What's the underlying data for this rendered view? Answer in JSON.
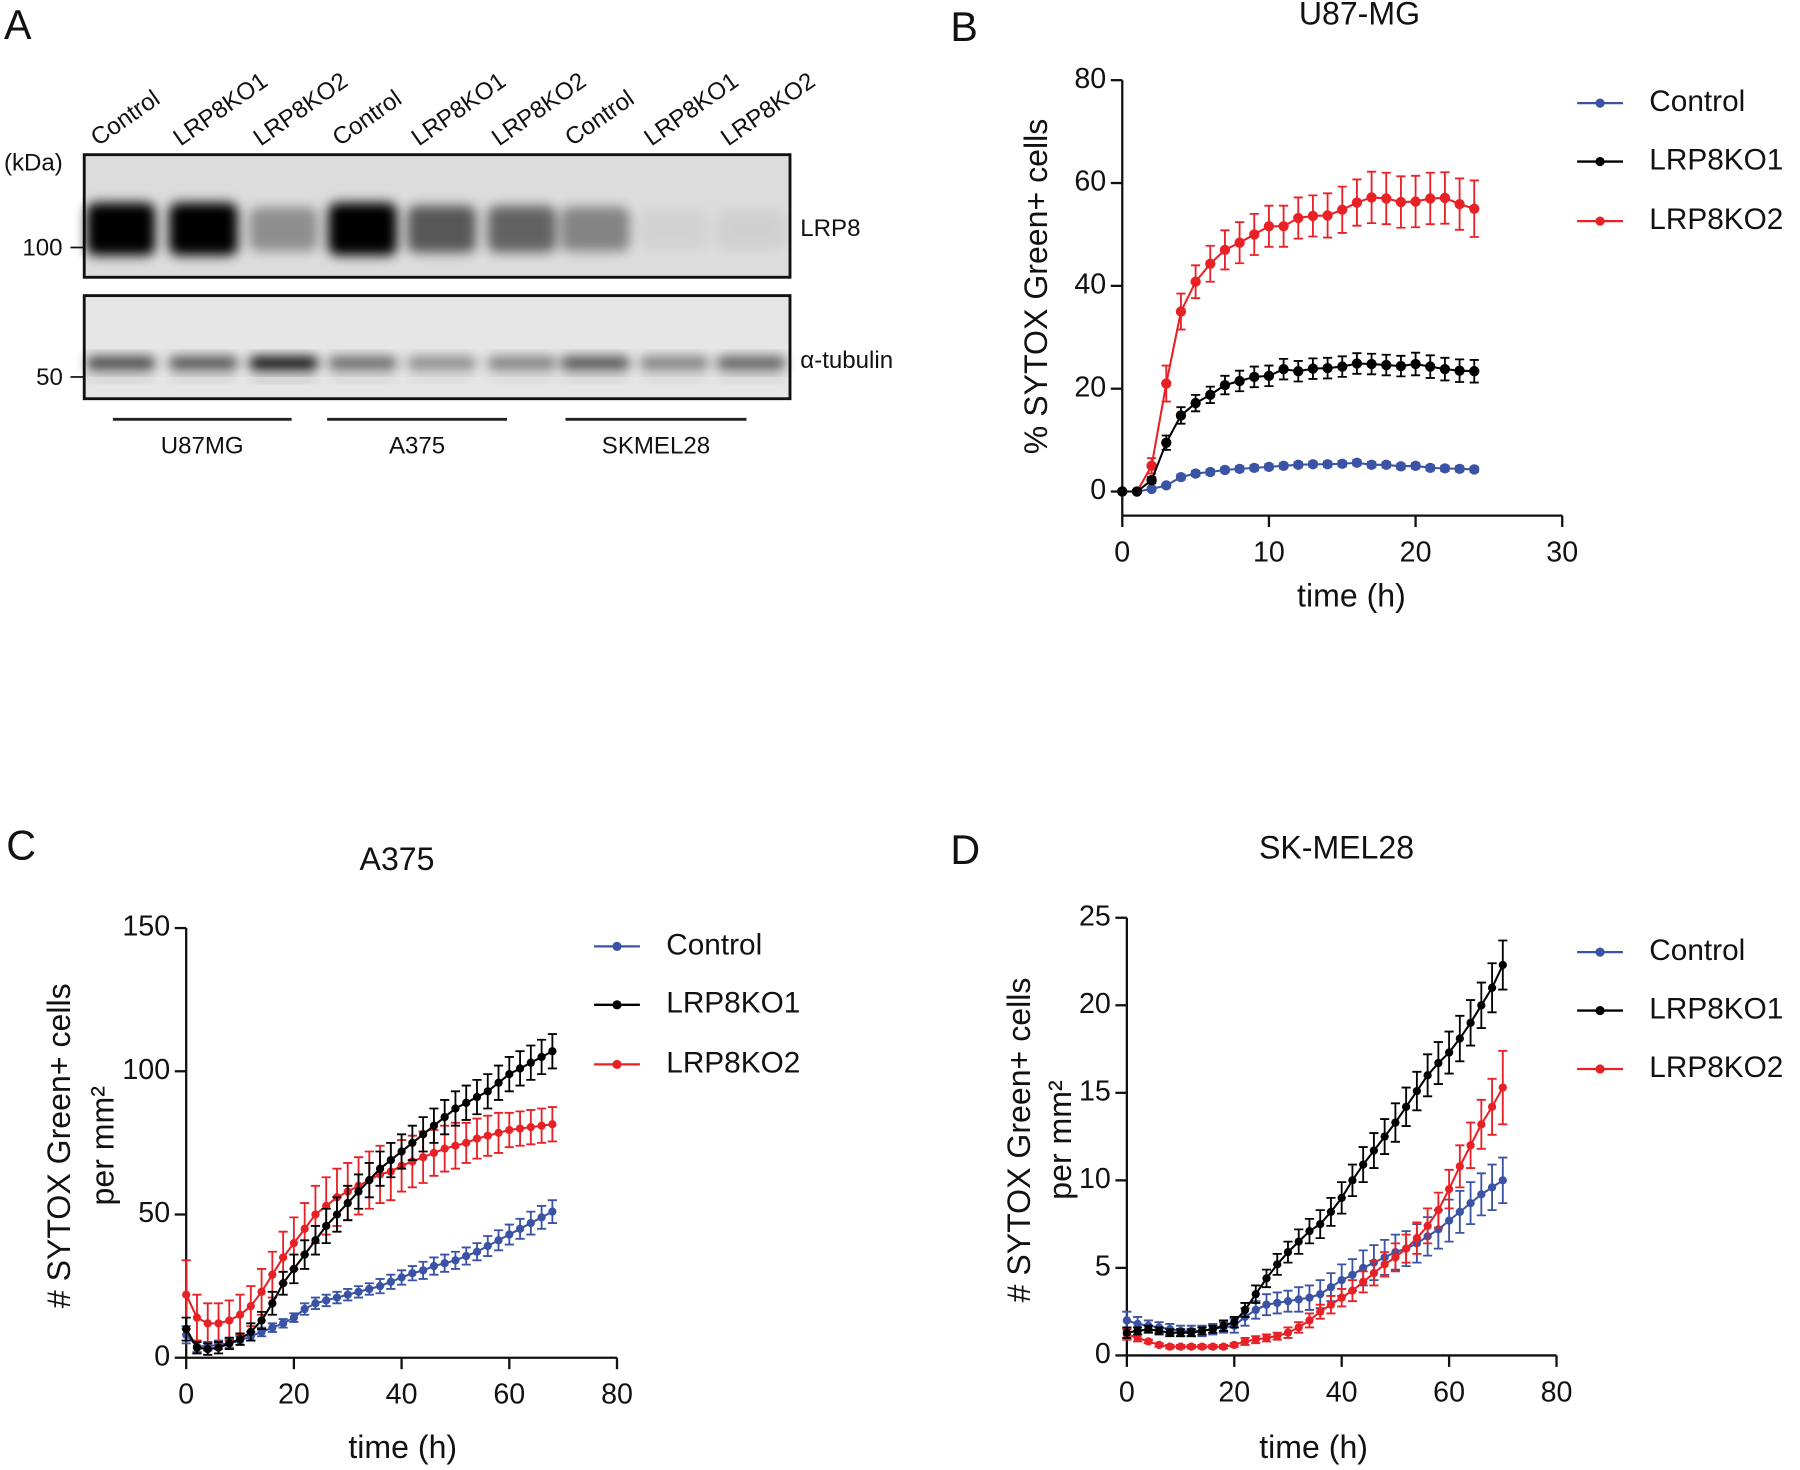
{
  "panels": {
    "a": "A",
    "b": "B",
    "c": "C",
    "d": "D"
  },
  "western_blot": {
    "lanes": [
      "Control",
      "LRP8KO1",
      "LRP8KO2",
      "Control",
      "LRP8KO1",
      "LRP8KO2",
      "Control",
      "LRP8KO1",
      "LRP8KO2"
    ],
    "kda_label": "(kDa)",
    "marker_100": "100",
    "marker_50": "50",
    "blot_lrp8": "LRP8",
    "blot_tubulin": "α-tubulin",
    "groups": [
      "U87MG",
      "A375",
      "SKMEL28"
    ],
    "lrp8_intensity": [
      1.0,
      1.0,
      0.35,
      1.0,
      0.6,
      0.55,
      0.4,
      0.04,
      0.05
    ],
    "tubulin_intensity": [
      0.7,
      0.65,
      0.95,
      0.55,
      0.4,
      0.45,
      0.65,
      0.45,
      0.6
    ]
  },
  "colors": {
    "Control": "#3a53a4",
    "LRP8KO1": "#000000",
    "LRP8KO2": "#e82127"
  },
  "chart_data": [
    {
      "type": "line",
      "title": "U87-MG",
      "xlabel": "time (h)",
      "ylabel": [
        "% SYTOX Green+ cells"
      ],
      "xlim": [
        0,
        30
      ],
      "ylim": [
        0,
        80
      ],
      "xticks": [
        0,
        10,
        20,
        30
      ],
      "yticks": [
        0,
        20,
        40,
        60,
        80
      ],
      "legend": "right",
      "x": [
        0,
        1,
        2,
        3,
        4,
        5,
        6,
        7,
        8,
        9,
        10,
        11,
        12,
        13,
        14,
        15,
        16,
        17,
        18,
        19,
        20,
        21,
        22,
        23,
        24
      ],
      "series": [
        {
          "name": "Control",
          "values": [
            0,
            0,
            0.5,
            1.2,
            2.8,
            3.5,
            3.8,
            4.2,
            4.4,
            4.6,
            4.8,
            5,
            5.2,
            5.3,
            5.3,
            5.4,
            5.6,
            5.2,
            5.2,
            4.9,
            5,
            4.6,
            4.5,
            4.4,
            4.3
          ],
          "error": [
            0,
            0,
            0.3,
            0.4,
            0.5,
            0.5,
            0.5,
            0.5,
            0.5,
            0.5,
            0.5,
            0.5,
            0.5,
            0.5,
            0.5,
            0.5,
            0.5,
            0.5,
            0.5,
            0.5,
            0.5,
            0.5,
            0.5,
            0.5,
            0.5
          ]
        },
        {
          "name": "LRP8KO1",
          "values": [
            0,
            0,
            2.2,
            9.5,
            14.8,
            17.2,
            18.8,
            20.7,
            21.5,
            22.3,
            22.5,
            23.8,
            23.4,
            23.9,
            24,
            24.3,
            24.9,
            24.8,
            24.6,
            24.4,
            24.8,
            24.3,
            23.8,
            23.5,
            23.4
          ],
          "error": [
            0,
            0,
            0.6,
            1.4,
            1.6,
            1.6,
            1.6,
            1.8,
            2,
            2,
            2,
            2,
            2,
            2,
            2,
            2,
            2,
            2,
            2,
            2,
            2.2,
            2.2,
            2.2,
            2.2,
            2.2
          ]
        },
        {
          "name": "LRP8KO2",
          "values": [
            0,
            0,
            5,
            21,
            35,
            40.8,
            44.3,
            47,
            48.4,
            50,
            51.6,
            51.6,
            53.2,
            53.6,
            53.7,
            54.8,
            56.2,
            57.2,
            57,
            56.3,
            56.4,
            57,
            57.1,
            55.9,
            55
          ],
          "error": [
            0,
            0,
            1.5,
            3.5,
            3.5,
            3.2,
            3.5,
            3.8,
            4,
            4,
            4,
            4,
            4,
            4,
            4.3,
            4.5,
            4.5,
            5,
            5,
            5,
            5,
            5,
            5,
            5,
            5.5
          ]
        }
      ]
    },
    {
      "type": "line",
      "title": "A375",
      "xlabel": "time (h)",
      "ylabel": [
        "# SYTOX Green+ cells",
        "per mm²"
      ],
      "xlim": [
        0,
        80
      ],
      "ylim": [
        0,
        150
      ],
      "xticks": [
        0,
        20,
        40,
        60,
        80
      ],
      "yticks": [
        0,
        50,
        100,
        150
      ],
      "legend": "right",
      "x": [
        0,
        2,
        4,
        6,
        8,
        10,
        12,
        14,
        16,
        18,
        20,
        22,
        24,
        26,
        28,
        30,
        32,
        34,
        36,
        38,
        40,
        42,
        44,
        46,
        48,
        50,
        52,
        54,
        56,
        58,
        60,
        62,
        64,
        66,
        68
      ],
      "series": [
        {
          "name": "Control",
          "values": [
            8,
            4,
            4,
            4.5,
            5,
            6,
            7.5,
            9,
            10.5,
            12,
            14,
            17,
            19,
            20,
            21,
            22,
            23,
            24,
            25,
            26.5,
            28,
            29.5,
            30.5,
            32,
            33,
            34,
            35.5,
            37,
            39,
            41,
            43,
            45,
            47,
            49,
            51
          ],
          "error": [
            3,
            2,
            1.5,
            1.5,
            1.5,
            1.5,
            1.5,
            1.5,
            1.5,
            1.5,
            1.5,
            2,
            2,
            2,
            2,
            2,
            2,
            2,
            2.5,
            2.5,
            2.5,
            2.5,
            3,
            3,
            3,
            3,
            3,
            3,
            3.5,
            3.5,
            3.5,
            3.5,
            4,
            4,
            4
          ]
        },
        {
          "name": "LRP8KO1",
          "values": [
            10,
            3.5,
            3,
            3.5,
            5,
            6.5,
            9,
            13,
            19,
            26,
            31,
            36,
            41,
            46,
            50,
            54,
            58,
            62,
            66,
            69,
            72,
            75,
            78,
            81,
            84,
            87,
            89,
            91,
            93,
            96,
            99,
            101,
            103,
            105,
            107
          ],
          "error": [
            4,
            2,
            2,
            2,
            2,
            2,
            3,
            3,
            4,
            4,
            5,
            5,
            5,
            6,
            6,
            6,
            6,
            6,
            6,
            6,
            6,
            6,
            6,
            6,
            6,
            6,
            6,
            6,
            6,
            6,
            6,
            6,
            6,
            6,
            6
          ]
        },
        {
          "name": "LRP8KO2",
          "values": [
            22,
            14,
            12,
            12,
            13,
            15,
            18,
            23,
            29,
            35,
            40,
            45,
            50,
            53,
            56,
            58,
            60,
            62,
            64,
            65,
            67,
            68.5,
            70,
            71.5,
            73,
            74,
            75,
            76.5,
            77.5,
            78.5,
            79.5,
            80,
            80.5,
            81,
            81.5
          ],
          "error": [
            12,
            8,
            7,
            7,
            7,
            7,
            7,
            8,
            8,
            9,
            9,
            9,
            10,
            10,
            10,
            10,
            10,
            10,
            10,
            10,
            9,
            9,
            9,
            8,
            8,
            8,
            7,
            7,
            7,
            7,
            6,
            6,
            6,
            6,
            6
          ]
        }
      ]
    },
    {
      "type": "line",
      "title": "SK-MEL28",
      "xlabel": "time (h)",
      "ylabel": [
        "# SYTOX Green+ cells",
        "per mm²"
      ],
      "xlim": [
        0,
        80
      ],
      "ylim": [
        0,
        25
      ],
      "xticks": [
        0,
        20,
        40,
        60,
        80
      ],
      "yticks": [
        0,
        5,
        10,
        15,
        20,
        25
      ],
      "legend": "right",
      "x": [
        0,
        2,
        4,
        6,
        8,
        10,
        12,
        14,
        16,
        18,
        20,
        22,
        24,
        26,
        28,
        30,
        32,
        34,
        36,
        38,
        40,
        42,
        44,
        46,
        48,
        50,
        52,
        54,
        56,
        58,
        60,
        62,
        64,
        66,
        68,
        70
      ],
      "series": [
        {
          "name": "Control",
          "values": [
            2,
            1.8,
            1.7,
            1.6,
            1.5,
            1.4,
            1.4,
            1.4,
            1.5,
            1.6,
            1.7,
            2.2,
            2.6,
            2.9,
            3,
            3.1,
            3.2,
            3.3,
            3.5,
            3.9,
            4.3,
            4.6,
            5,
            5.3,
            5.6,
            5.9,
            6.1,
            6.4,
            6.8,
            7.2,
            7.7,
            8.2,
            8.7,
            9.2,
            9.6,
            10
          ],
          "error": [
            0.5,
            0.4,
            0.3,
            0.3,
            0.3,
            0.3,
            0.3,
            0.3,
            0.3,
            0.3,
            0.4,
            0.5,
            0.5,
            0.6,
            0.6,
            0.6,
            0.7,
            0.7,
            0.8,
            0.8,
            0.9,
            0.9,
            1,
            1,
            1,
            1,
            1,
            1.1,
            1.1,
            1.1,
            1.2,
            1.2,
            1.2,
            1.2,
            1.3,
            1.3
          ]
        },
        {
          "name": "LRP8KO1",
          "values": [
            1.3,
            1.4,
            1.5,
            1.4,
            1.3,
            1.3,
            1.3,
            1.4,
            1.5,
            1.7,
            1.9,
            2.6,
            3.5,
            4.4,
            5.2,
            5.9,
            6.5,
            7.1,
            7.5,
            8.2,
            9,
            10,
            10.9,
            11.7,
            12.5,
            13.3,
            14.2,
            15.1,
            16,
            16.7,
            17.3,
            18.1,
            19,
            20,
            21,
            22.3
          ],
          "error": [
            0.3,
            0.2,
            0.2,
            0.2,
            0.2,
            0.2,
            0.2,
            0.2,
            0.2,
            0.3,
            0.3,
            0.4,
            0.5,
            0.5,
            0.6,
            0.6,
            0.7,
            0.7,
            0.8,
            0.8,
            0.9,
            0.9,
            1,
            1,
            1,
            1.1,
            1.1,
            1.1,
            1.2,
            1.2,
            1.2,
            1.3,
            1.3,
            1.3,
            1.4,
            1.4
          ]
        },
        {
          "name": "LRP8KO2",
          "values": [
            1.2,
            1,
            0.8,
            0.6,
            0.5,
            0.5,
            0.5,
            0.5,
            0.5,
            0.5,
            0.6,
            0.8,
            0.9,
            1,
            1.1,
            1.3,
            1.6,
            2,
            2.5,
            2.9,
            3.3,
            3.7,
            4.2,
            4.7,
            5.2,
            5.6,
            6.1,
            6.7,
            7.4,
            8.3,
            9.5,
            10.8,
            12,
            13.2,
            14.2,
            15.3
          ],
          "error": [
            0.3,
            0.2,
            0.1,
            0.1,
            0.1,
            0.1,
            0.1,
            0.1,
            0.1,
            0.1,
            0.1,
            0.2,
            0.2,
            0.2,
            0.2,
            0.3,
            0.3,
            0.4,
            0.4,
            0.5,
            0.5,
            0.6,
            0.6,
            0.7,
            0.7,
            0.8,
            0.8,
            0.9,
            1,
            1,
            1.1,
            1.2,
            1.3,
            1.4,
            1.6,
            2.1
          ]
        }
      ]
    }
  ]
}
